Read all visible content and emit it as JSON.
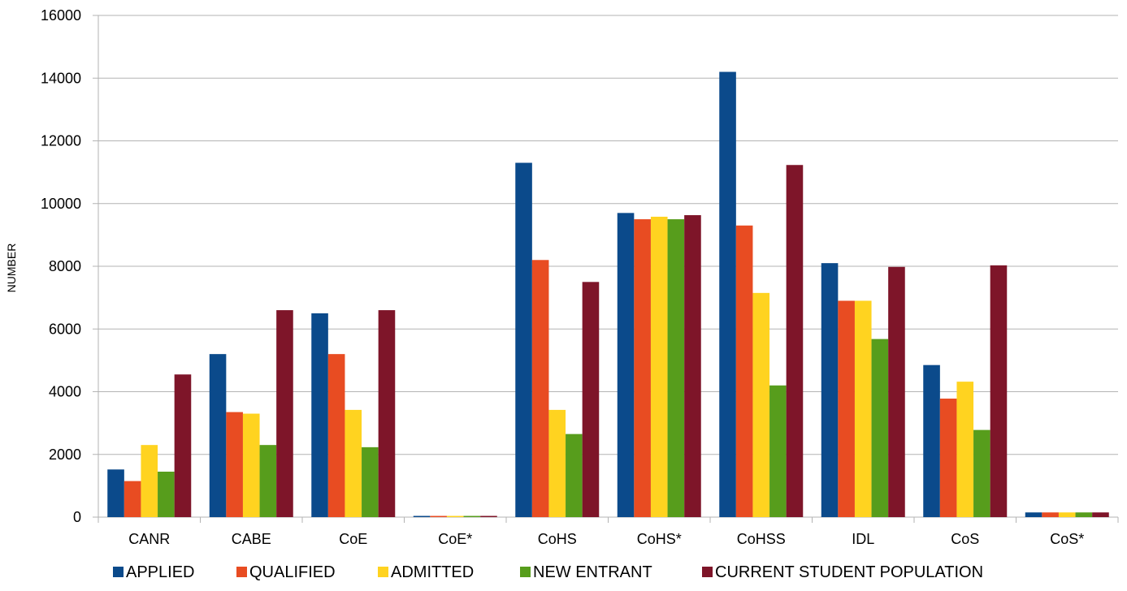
{
  "chart_data": {
    "type": "bar",
    "title": "",
    "xlabel": "",
    "ylabel": "NUMBER",
    "ylim": [
      0,
      16000
    ],
    "yticks": [
      0,
      2000,
      4000,
      6000,
      8000,
      10000,
      12000,
      14000,
      16000
    ],
    "grid": true,
    "legend_position": "bottom",
    "categories": [
      "CANR",
      "CABE",
      "CoE",
      "CoE*",
      "CoHS",
      "CoHS*",
      "CoHSS",
      "IDL",
      "CoS",
      "CoS*"
    ],
    "series": [
      {
        "name": "APPLIED",
        "color": "#0b4a8b",
        "values": [
          1520,
          5200,
          6500,
          0,
          11300,
          9700,
          14200,
          8100,
          4850,
          150
        ]
      },
      {
        "name": "QUALIFIED",
        "color": "#e84c22",
        "values": [
          1150,
          3350,
          5200,
          0,
          8200,
          9500,
          9300,
          6900,
          3780,
          150
        ]
      },
      {
        "name": "ADMITTED",
        "color": "#ffd320",
        "values": [
          2300,
          3300,
          3420,
          0,
          3420,
          9580,
          7150,
          6900,
          4320,
          150
        ]
      },
      {
        "name": "NEW ENTRANT",
        "color": "#579d1c",
        "values": [
          1450,
          2300,
          2230,
          0,
          2650,
          9500,
          4200,
          5680,
          2780,
          150
        ]
      },
      {
        "name": "CURRENT STUDENT POPULATION",
        "color": "#7e1529",
        "values": [
          4550,
          6600,
          6600,
          0,
          7500,
          9630,
          11230,
          7980,
          8030,
          150
        ]
      }
    ]
  }
}
